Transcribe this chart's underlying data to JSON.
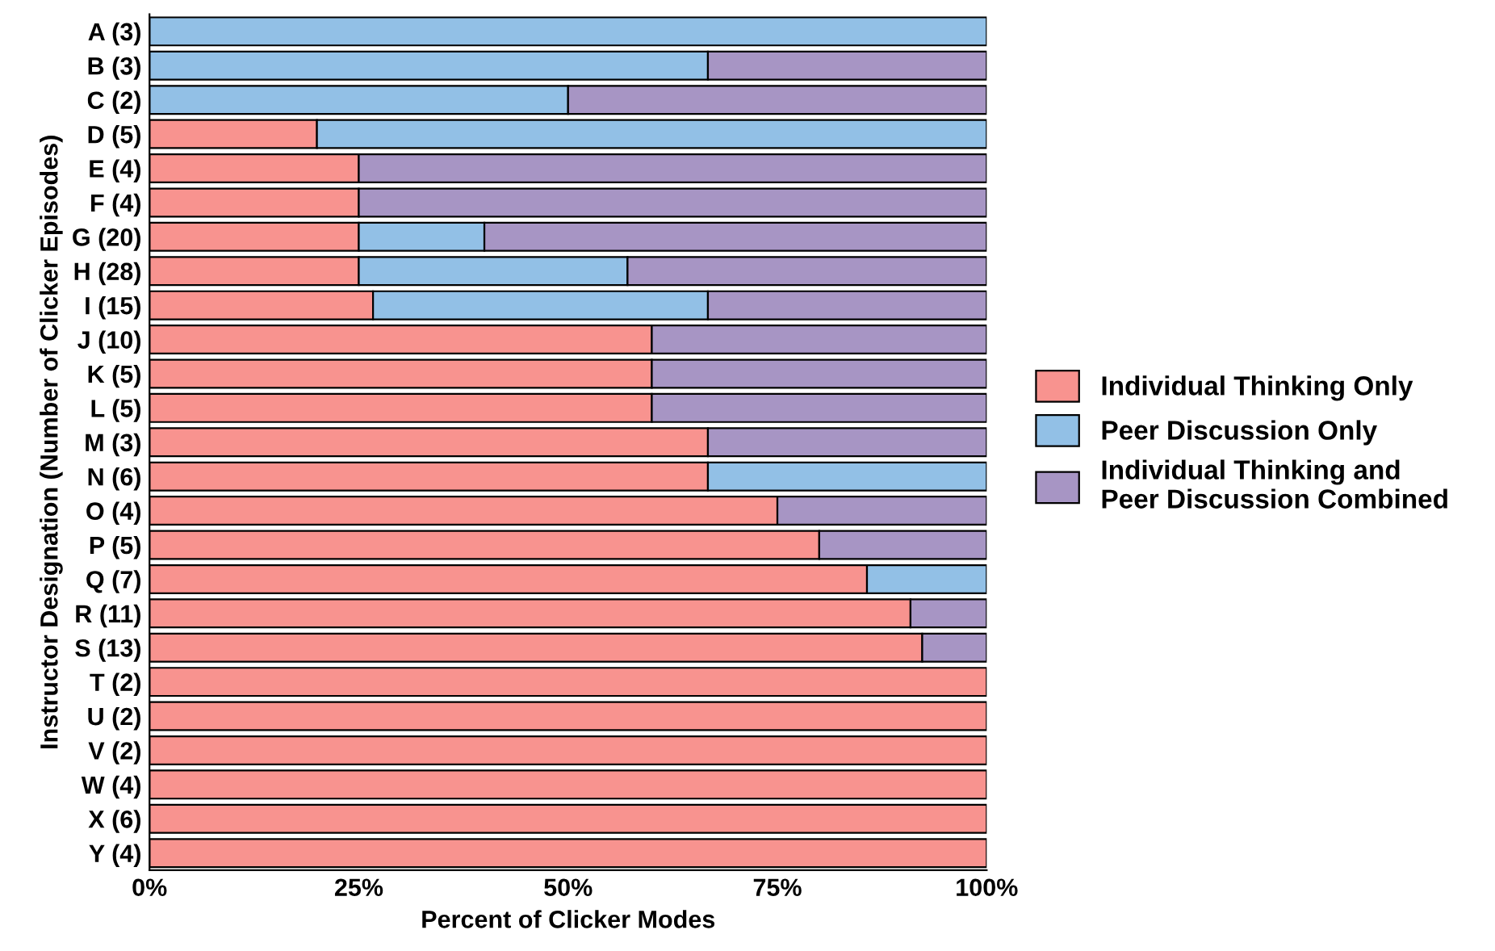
{
  "chart_data": {
    "type": "bar",
    "orientation": "horizontal",
    "stacked": true,
    "xlabel": "Percent of Clicker Modes",
    "ylabel": "Instructor Designation (Number of Clicker Episodes)",
    "categories": [
      "A (3)",
      "B (3)",
      "C (2)",
      "D (5)",
      "E (4)",
      "F (4)",
      "G (20)",
      "H (28)",
      "I (15)",
      "J (10)",
      "K (5)",
      "L (5)",
      "M (3)",
      "N (6)",
      "O (4)",
      "P (5)",
      "Q (7)",
      "R (11)",
      "S (13)",
      "T (2)",
      "U (2)",
      "V (2)",
      "W (4)",
      "X (6)",
      "Y (4)"
    ],
    "series": [
      {
        "name": "Individual Thinking Only",
        "color": "#f8938f",
        "values": [
          0,
          0,
          0,
          20,
          25,
          25,
          25,
          25,
          26.7,
          60,
          60,
          60,
          66.7,
          66.7,
          75,
          80,
          85.7,
          90.9,
          92.3,
          100,
          100,
          100,
          100,
          100,
          100
        ]
      },
      {
        "name": "Peer Discussion Only",
        "color": "#92c0e6",
        "values": [
          100,
          66.7,
          50,
          80,
          0,
          0,
          15,
          32.1,
          40,
          0,
          0,
          0,
          0,
          33.3,
          0,
          0,
          14.3,
          0,
          0,
          0,
          0,
          0,
          0,
          0,
          0
        ]
      },
      {
        "name": "Individual Thinking and\nPeer Discussion Combined",
        "color": "#a795c4",
        "values": [
          0,
          33.3,
          50,
          0,
          75,
          75,
          60,
          42.9,
          33.3,
          40,
          40,
          40,
          33.3,
          0,
          25,
          20,
          0,
          9.1,
          7.7,
          0,
          0,
          0,
          0,
          0,
          0
        ]
      }
    ],
    "xlim": [
      0,
      100
    ],
    "xticks": [
      {
        "value": 0,
        "label": "0%"
      },
      {
        "value": 25,
        "label": "25%"
      },
      {
        "value": 50,
        "label": "50%"
      },
      {
        "value": 75,
        "label": "75%"
      },
      {
        "value": 100,
        "label": "100%"
      }
    ],
    "grid": false,
    "legend": "right"
  }
}
